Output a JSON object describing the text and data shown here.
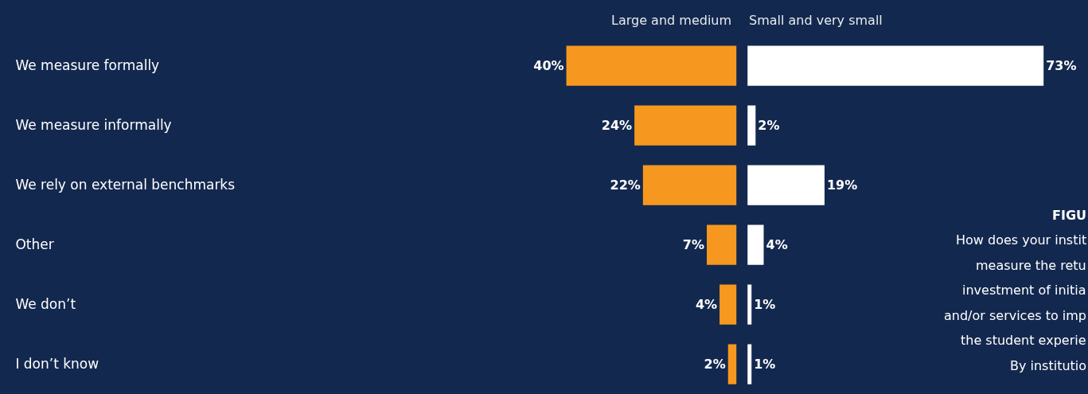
{
  "chart_data": [
    {
      "type": "bar",
      "orientation": "horizontal",
      "title": "Large and medium",
      "categories": [
        "We measure formally",
        "We measure informally",
        "We rely on external benchmarks",
        "Other",
        "We don’t",
        "I don’t know"
      ],
      "series": [
        {
          "color": "#f6981f",
          "values": [
            40,
            24,
            22,
            7,
            4,
            2
          ],
          "value_labels": [
            "40%",
            "24%",
            "22%",
            "7%",
            "4%",
            "2%"
          ]
        }
      ],
      "tick_labels": "y"
    },
    {
      "type": "bar",
      "orientation": "horizontal",
      "title": "Small and very small",
      "categories": [
        null,
        null,
        null,
        null,
        null,
        null
      ],
      "series": [
        {
          "color": "#ffffff",
          "values": [
            73,
            2,
            19,
            4,
            1,
            1
          ],
          "value_labels": [
            "73%",
            "2%",
            "19%",
            "4%",
            "1%",
            "1%"
          ]
        }
      ],
      "tick_labels": false,
      "annotations": [
        "FIGU",
        "How does your instit",
        "measure the retu",
        "investment of initia",
        "and/or services to imp",
        "the student experie",
        "By institutio"
      ]
    }
  ]
}
